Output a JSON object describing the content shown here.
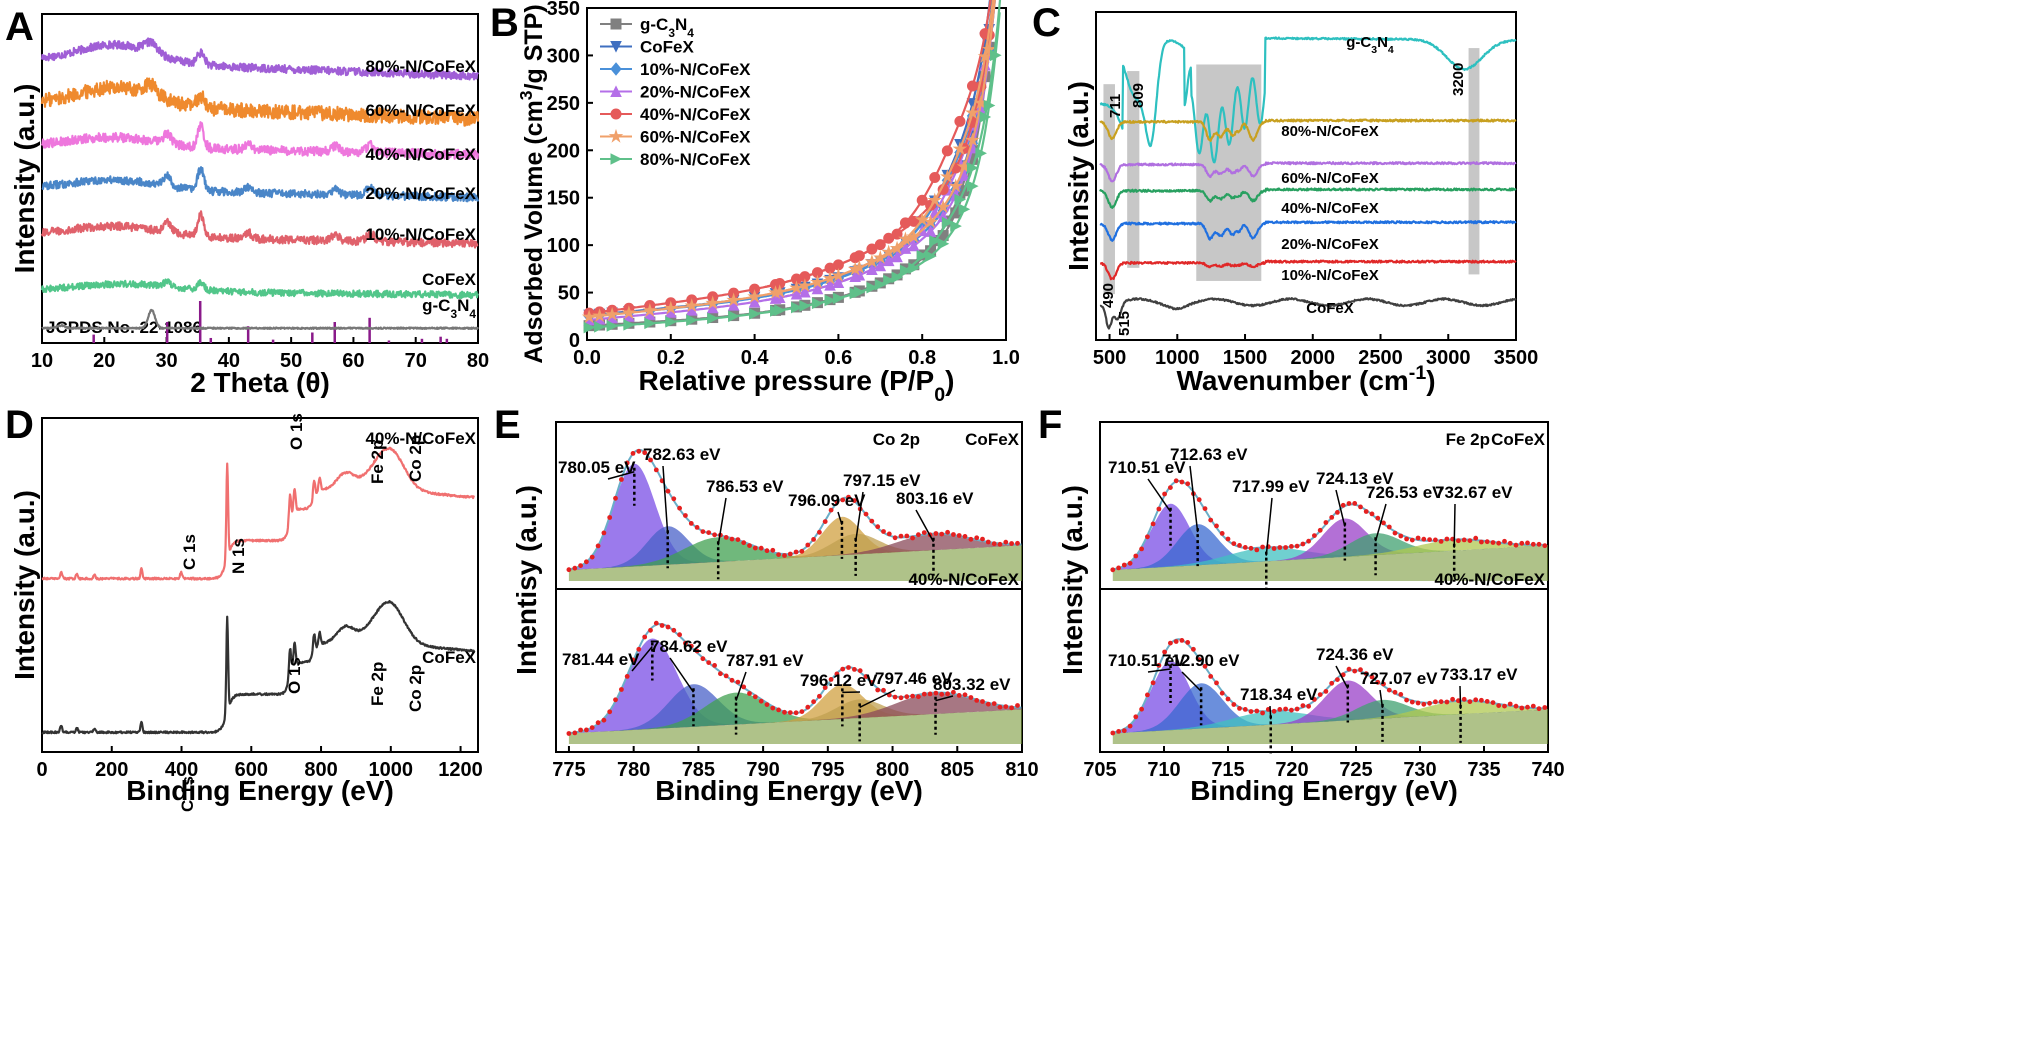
{
  "chart_data": [
    {
      "panel": "A",
      "type": "line",
      "xlabel": "2 Theta (θ)",
      "ylabel": "Intensity (a.u.)",
      "xlim": [
        10,
        80
      ],
      "xticks": [
        10,
        20,
        30,
        40,
        50,
        60,
        70,
        80
      ],
      "reference_label": "JCPDS No. 22-1086",
      "reference_peaks": [
        {
          "x": 18.3,
          "h": 0.2
        },
        {
          "x": 30.1,
          "h": 0.5
        },
        {
          "x": 35.4,
          "h": 1.0
        },
        {
          "x": 37.1,
          "h": 0.12
        },
        {
          "x": 43.1,
          "h": 0.4
        },
        {
          "x": 47.1,
          "h": 0.08
        },
        {
          "x": 53.4,
          "h": 0.25
        },
        {
          "x": 57.0,
          "h": 0.5
        },
        {
          "x": 62.6,
          "h": 0.6
        },
        {
          "x": 65.7,
          "h": 0.06
        },
        {
          "x": 71.0,
          "h": 0.1
        },
        {
          "x": 74.0,
          "h": 0.15
        },
        {
          "x": 75.0,
          "h": 0.1
        }
      ],
      "series": [
        {
          "name": "80%-N/CoFeX",
          "color": "#a05fd6",
          "pattern": "c3n4",
          "offset": 0.86,
          "noise": 0.012
        },
        {
          "name": "60%-N/CoFeX",
          "color": "#ef8a2e",
          "pattern": "c3n4",
          "offset": 0.73,
          "noise": 0.022
        },
        {
          "name": "40%-N/CoFeX",
          "color": "#ee77dd",
          "pattern": "spinel",
          "offset": 0.6,
          "noise": 0.014
        },
        {
          "name": "20%-N/CoFeX",
          "color": "#4a86c8",
          "pattern": "spinel",
          "offset": 0.47,
          "noise": 0.012
        },
        {
          "name": "10%-N/CoFeX",
          "color": "#e0616b",
          "pattern": "spinel",
          "offset": 0.33,
          "noise": 0.012
        },
        {
          "name": "CoFeX",
          "color": "#52c68a",
          "pattern": "spinel_weak",
          "offset": 0.16,
          "noise": 0.01
        },
        {
          "name": "g-C₃N₄",
          "color": "#777777",
          "pattern": "gcn",
          "offset": 0.045,
          "noise": 0.002
        }
      ]
    },
    {
      "panel": "B",
      "type": "line",
      "xlabel": "Relative pressure (P/P₀)",
      "ylabel": "Adsorbed Volume (cm³/g STP)",
      "xlim": [
        0.0,
        1.0
      ],
      "ylim": [
        0,
        350
      ],
      "xticks": [
        0.0,
        0.2,
        0.4,
        0.6,
        0.8,
        1.0
      ],
      "yticks": [
        0,
        50,
        100,
        150,
        200,
        250,
        300,
        350
      ],
      "series": [
        {
          "name": "g-C₃N₄",
          "color": "#808080",
          "marker": "square",
          "base": 15,
          "slope": 26,
          "rise": 110,
          "ymax": 335,
          "hyst": 10
        },
        {
          "name": "CoFeX",
          "color": "#3f6fc0",
          "marker": "tri-down",
          "base": 26,
          "slope": 40,
          "rise": 120,
          "ymax": 340,
          "hyst": 35
        },
        {
          "name": "10%-N/CoFeX",
          "color": "#4a90d9",
          "marker": "diamond",
          "base": 25,
          "slope": 40,
          "rise": 125,
          "ymax": 300,
          "hyst": 30
        },
        {
          "name": "20%-N/CoFeX",
          "color": "#b46fe8",
          "marker": "tri-up",
          "base": 21,
          "slope": 40,
          "rise": 120,
          "ymax": 305,
          "hyst": 25
        },
        {
          "name": "40%-N/CoFeX",
          "color": "#e55a5a",
          "marker": "circle",
          "base": 28,
          "slope": 55,
          "rise": 140,
          "ymax": 300,
          "hyst": 40
        },
        {
          "name": "60%-N/CoFeX",
          "color": "#f0a06a",
          "marker": "star",
          "base": 24,
          "slope": 46,
          "rise": 125,
          "ymax": 300,
          "hyst": 30
        },
        {
          "name": "80%-N/CoFeX",
          "color": "#5fc08a",
          "marker": "tri-right",
          "base": 13,
          "slope": 30,
          "rise": 100,
          "ymax": 250,
          "hyst": 20
        }
      ]
    },
    {
      "panel": "C",
      "type": "line",
      "xlabel": "Wavenumber (cm⁻¹)",
      "ylabel": "Intensity (a.u.)",
      "xlim": [
        400,
        3500
      ],
      "xticks": [
        500,
        1000,
        1500,
        2000,
        2500,
        3000,
        3500
      ],
      "band_labels": [
        "711",
        "809",
        "3200",
        "490",
        "515"
      ],
      "series": [
        {
          "name": "g-C₃N₄",
          "color": "#2ec0c0",
          "pattern": "gcn",
          "offset": 0.9
        },
        {
          "name": "80%-N/CoFeX",
          "color": "#c8a020",
          "pattern": "comp",
          "amp": 0.055,
          "offset": 0.665
        },
        {
          "name": "60%-N/CoFeX",
          "color": "#b070e0",
          "pattern": "comp",
          "amp": 0.035,
          "offset": 0.535
        },
        {
          "name": "40%-N/CoFeX",
          "color": "#28a060",
          "pattern": "comp",
          "amp": 0.03,
          "offset": 0.455
        },
        {
          "name": "20%-N/CoFeX",
          "color": "#2070e0",
          "pattern": "comp",
          "amp": 0.045,
          "offset": 0.355
        },
        {
          "name": "10%-N/CoFeX",
          "color": "#e02828",
          "pattern": "comp_flat",
          "amp": 0.012,
          "offset": 0.235
        },
        {
          "name": "CoFeX",
          "color": "#404040",
          "pattern": "cofex",
          "offset": 0.115
        }
      ]
    },
    {
      "panel": "D",
      "type": "line",
      "xlabel": "Binding Energy (eV)",
      "ylabel": "Intensity (a.u.)",
      "xlim": [
        0,
        1250
      ],
      "xticks": [
        0,
        200,
        400,
        600,
        800,
        1000,
        1200
      ],
      "peak_labels": [
        "C 1s",
        "N 1s",
        "O 1s",
        "Fe 2p",
        "Co 2p"
      ],
      "series": [
        {
          "name": "40%-N/CoFeX",
          "color": "#f07070",
          "offset": 0.5,
          "npeak": true
        },
        {
          "name": "CoFeX",
          "color": "#333333",
          "offset": 0.04,
          "npeak": false
        }
      ]
    },
    {
      "panel": "E",
      "type": "area",
      "xlabel": "Binding Energy (eV)",
      "ylabel": "Intentisy (a.u.)",
      "xlim": [
        774,
        810
      ],
      "xticks": [
        775,
        780,
        785,
        790,
        795,
        800,
        805,
        810
      ],
      "spectrum": "Co 2p",
      "subpanels": [
        {
          "sample": "CoFeX",
          "peaks": [
            {
              "center": 780.05,
              "amp": 0.75,
              "width": 1.6,
              "label": "780.05 eV"
            },
            {
              "center": 782.63,
              "amp": 0.28,
              "width": 1.6,
              "label": "782.63 eV"
            },
            {
              "center": 786.53,
              "amp": 0.18,
              "width": 2.6,
              "label": "786.53 eV"
            },
            {
              "center": 796.09,
              "amp": 0.28,
              "width": 1.5,
              "label": "796.09 eV"
            },
            {
              "center": 797.15,
              "amp": 0.15,
              "width": 1.8,
              "label": "797.15 eV"
            },
            {
              "center": 803.16,
              "amp": 0.12,
              "width": 2.8,
              "label": "803.16 eV"
            }
          ]
        },
        {
          "sample": "40%-N/CoFeX",
          "peaks": [
            {
              "center": 781.44,
              "amp": 0.68,
              "width": 1.9,
              "label": "781.44 eV"
            },
            {
              "center": 784.62,
              "amp": 0.32,
              "width": 1.9,
              "label": "784.62 eV"
            },
            {
              "center": 787.91,
              "amp": 0.24,
              "width": 2.4,
              "label": "787.91 eV"
            },
            {
              "center": 796.12,
              "amp": 0.26,
              "width": 1.6,
              "label": "796.12 eV"
            },
            {
              "center": 797.46,
              "amp": 0.14,
              "width": 1.8,
              "label": "797.46 eV"
            },
            {
              "center": 803.32,
              "amp": 0.16,
              "width": 3.0,
              "label": "803.32 eV"
            }
          ]
        }
      ]
    },
    {
      "panel": "F",
      "type": "area",
      "xlabel": "Binding Energy (eV)",
      "ylabel": "Intensity (a.u.)",
      "xlim": [
        705,
        740
      ],
      "xticks": [
        705,
        710,
        715,
        720,
        725,
        730,
        735,
        740
      ],
      "spectrum": "Fe 2p",
      "subpanels": [
        {
          "sample": "CoFeX",
          "peaks": [
            {
              "center": 710.51,
              "amp": 0.46,
              "width": 1.5,
              "label": "710.51 eV"
            },
            {
              "center": 712.63,
              "amp": 0.3,
              "width": 1.6,
              "label": "712.63 eV"
            },
            {
              "center": 717.99,
              "amp": 0.1,
              "width": 3.0,
              "label": "717.99 eV"
            },
            {
              "center": 724.13,
              "amp": 0.28,
              "width": 1.7,
              "label": "724.13 eV"
            },
            {
              "center": 726.53,
              "amp": 0.16,
              "width": 2.0,
              "label": "726.53 eV"
            },
            {
              "center": 732.67,
              "amp": 0.08,
              "width": 3.0,
              "label": "732.67 eV"
            }
          ]
        },
        {
          "sample": "40%-N/CoFeX",
          "peaks": [
            {
              "center": 710.51,
              "amp": 0.52,
              "width": 1.5,
              "label": "710.51 eV"
            },
            {
              "center": 712.9,
              "amp": 0.34,
              "width": 1.7,
              "label": "712.90 eV"
            },
            {
              "center": 718.34,
              "amp": 0.1,
              "width": 3.0,
              "label": "718.34 eV"
            },
            {
              "center": 724.36,
              "amp": 0.3,
              "width": 1.8,
              "label": "724.36 eV"
            },
            {
              "center": 727.07,
              "amp": 0.14,
              "width": 2.0,
              "label": "727.07 eV"
            },
            {
              "center": 733.17,
              "amp": 0.1,
              "width": 3.0,
              "label": "733.17 eV"
            }
          ]
        }
      ]
    }
  ],
  "panel_letters": [
    "A",
    "B",
    "C",
    "D",
    "E",
    "F"
  ]
}
